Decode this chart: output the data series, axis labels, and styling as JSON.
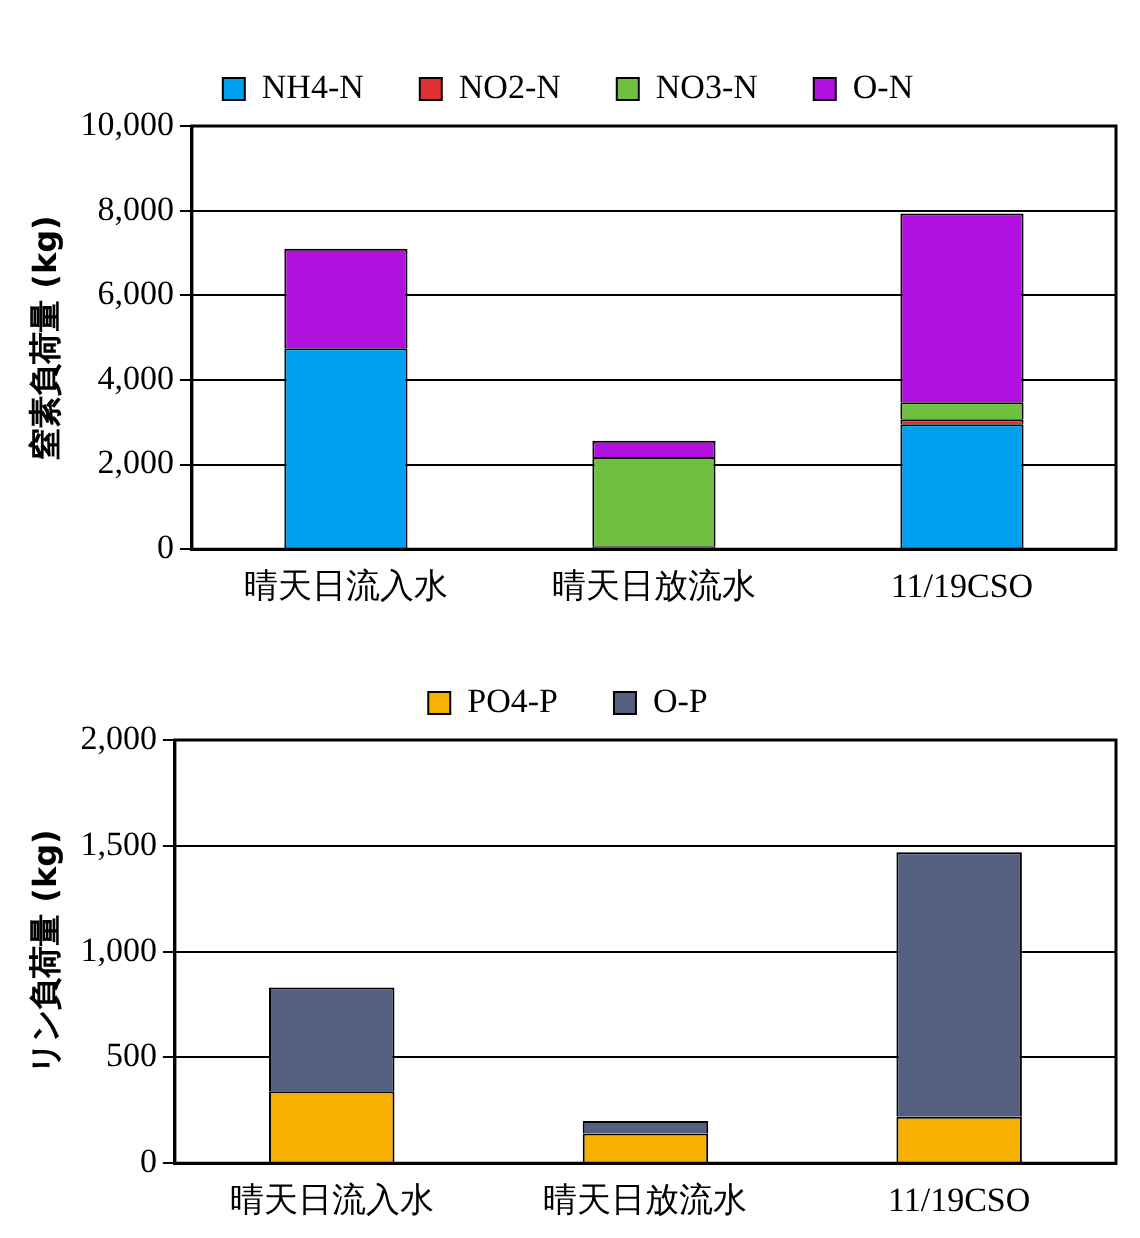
{
  "chart_data": [
    {
      "type": "bar",
      "stacked": true,
      "ylabel": "窒素負荷量 (kg)",
      "categories": [
        "晴天日流入水",
        "晴天日放流水",
        "11/19CSO"
      ],
      "series": [
        {
          "name": "NH4-N",
          "color": "#00a0f0",
          "values": [
            4750,
            null,
            2950
          ]
        },
        {
          "name": "NO2-N",
          "color": "#e03030",
          "values": [
            0,
            70,
            120
          ]
        },
        {
          "name": "NO3-N",
          "color": "#70c040",
          "values": [
            0,
            2110,
            400
          ]
        },
        {
          "name": "O-N",
          "color": "#b010e0",
          "values": [
            2350,
            380,
            4460
          ]
        }
      ],
      "ylim": [
        0,
        10000
      ],
      "yticks": [
        {
          "value": 0,
          "label": "0"
        },
        {
          "value": 2000,
          "label": "2,000"
        },
        {
          "value": 4000,
          "label": "4,000"
        },
        {
          "value": 6000,
          "label": "6,000"
        },
        {
          "value": 8000,
          "label": "8,000"
        },
        {
          "value": 10000,
          "label": "10,000"
        }
      ],
      "grid": "y",
      "legend": "top"
    },
    {
      "type": "bar",
      "stacked": true,
      "ylabel": "リン負荷量 (kg)",
      "categories": [
        "晴天日流入水",
        "晴天日放流水",
        "11/19CSO"
      ],
      "series": [
        {
          "name": "PO4-P",
          "color": "#f8b000",
          "values": [
            340,
            140,
            220
          ]
        },
        {
          "name": "O-P",
          "color": "#556080",
          "values": [
            490,
            60,
            1250
          ]
        }
      ],
      "ylim": [
        0,
        2000
      ],
      "yticks": [
        {
          "value": 0,
          "label": "0"
        },
        {
          "value": 500,
          "label": "500"
        },
        {
          "value": 1000,
          "label": "1,000"
        },
        {
          "value": 1500,
          "label": "1,500"
        },
        {
          "value": 2000,
          "label": "2,000"
        }
      ],
      "grid": "y",
      "legend": "top"
    }
  ]
}
